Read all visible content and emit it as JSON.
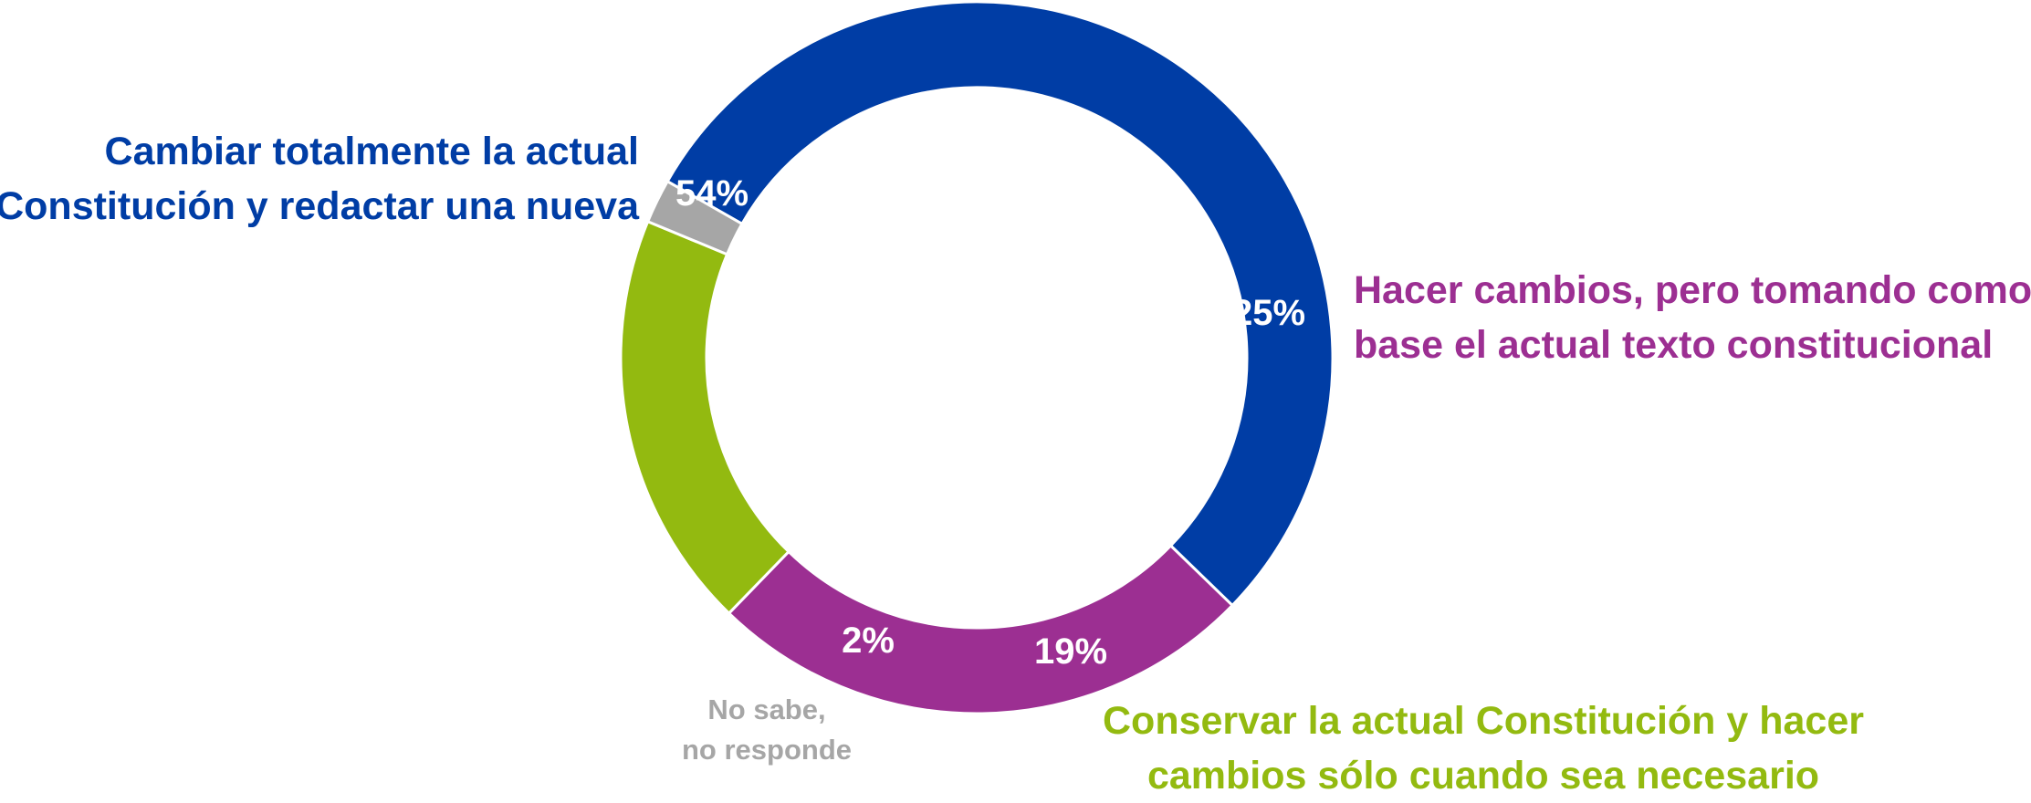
{
  "chart_data": {
    "type": "pie",
    "title": "",
    "categories": [
      [
        "Cambiar totalmente la actual",
        "Constitución y redactar una nueva"
      ],
      [
        "Hacer cambios, pero tomando como",
        "base el actual texto constitucional"
      ],
      [
        "Conservar la actual Constitución y hacer",
        "cambios sólo cuando sea necesario"
      ],
      [
        "No sabe,",
        "no responde"
      ]
    ],
    "values": [
      54,
      25,
      19,
      2
    ],
    "value_labels": [
      "54%",
      "25%",
      "19%",
      "2%"
    ],
    "colors": [
      "#003DA5",
      "#9C2F92",
      "#93BA10",
      "#A6A6A6"
    ],
    "label_colors": [
      "#003DA5",
      "#9C2F92",
      "#93BA10",
      "#A6A6A6"
    ],
    "legend": "none",
    "donut": true
  }
}
